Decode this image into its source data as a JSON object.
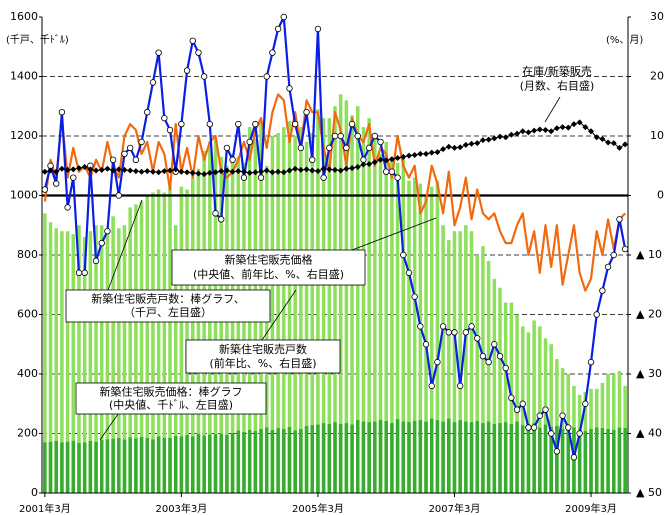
{
  "chart_data": {
    "type": "combo",
    "unit_left": "(千戸、千ﾄﾞﾙ)",
    "unit_right": "(%、月)",
    "categories": [
      "2001年3月",
      null,
      null,
      null,
      null,
      null,
      null,
      null,
      null,
      null,
      null,
      null,
      null,
      null,
      null,
      null,
      null,
      null,
      null,
      null,
      null,
      null,
      null,
      null,
      "2003年3月",
      null,
      null,
      null,
      null,
      null,
      null,
      null,
      null,
      null,
      null,
      null,
      null,
      null,
      null,
      null,
      null,
      null,
      null,
      null,
      null,
      null,
      null,
      null,
      "2005年3月",
      null,
      null,
      null,
      null,
      null,
      null,
      null,
      null,
      null,
      null,
      null,
      null,
      null,
      null,
      null,
      null,
      null,
      null,
      null,
      null,
      null,
      null,
      null,
      "2007年3月",
      null,
      null,
      null,
      null,
      null,
      null,
      null,
      null,
      null,
      null,
      null,
      null,
      null,
      null,
      null,
      null,
      null,
      null,
      null,
      null,
      null,
      null,
      null,
      "2009年3月",
      null,
      null,
      null,
      null,
      null,
      null
    ],
    "ylim": [
      0,
      1600
    ],
    "yticks": [
      0,
      200,
      400,
      600,
      800,
      1000,
      1200,
      1400,
      1600
    ],
    "y2lim": [
      -50,
      30
    ],
    "y2ticks": [
      30,
      20,
      10,
      0,
      {
        "value": -10,
        "label": "▲ 10"
      },
      {
        "value": -20,
        "label": "▲ 20"
      },
      {
        "value": -30,
        "label": "▲ 30"
      },
      {
        "value": -40,
        "label": "▲ 40"
      },
      {
        "value": -50,
        "label": "▲ 50"
      }
    ],
    "grid": true,
    "series": [
      {
        "name": "新築住宅販売戸数：棒グラフ、",
        "note": "（千戸、左目盛）",
        "kind": "bar",
        "color": "#8ee05c",
        "values": [
          940,
          910,
          890,
          880,
          880,
          870,
          900,
          860,
          880,
          900,
          900,
          880,
          930,
          890,
          900,
          960,
          970,
          980,
          1000,
          1010,
          1020,
          1010,
          1030,
          900,
          1030,
          1020,
          1060,
          1090,
          1150,
          1180,
          1190,
          1130,
          1100,
          1140,
          1130,
          1110,
          1230,
          1190,
          1250,
          1100,
          1200,
          1210,
          1230,
          1250,
          1200,
          1230,
          1180,
          1210,
          1290,
          1260,
          1260,
          1300,
          1340,
          1320,
          1270,
          1300,
          1230,
          1260,
          1200,
          1140,
          1180,
          1130,
          1110,
          1130,
          1050,
          1060,
          1040,
          1000,
          1030,
          1050,
          900,
          850,
          880,
          880,
          900,
          880,
          800,
          830,
          780,
          720,
          690,
          640,
          640,
          600,
          560,
          540,
          580,
          560,
          520,
          500,
          450,
          420,
          400,
          360,
          330,
          340,
          350,
          350,
          370,
          400,
          400,
          410,
          360
        ]
      },
      {
        "name": "新築住宅販売価格：棒グラフ",
        "note": "(中央値、千ﾄﾞﾙ、左目盛)",
        "kind": "bar",
        "color": "#36ad2e",
        "values": [
          170,
          172,
          175,
          170,
          172,
          175,
          168,
          170,
          175,
          172,
          178,
          180,
          182,
          185,
          180,
          187,
          183,
          188,
          185,
          180,
          190,
          185,
          185,
          192,
          190,
          195,
          190,
          198,
          193,
          196,
          198,
          200,
          195,
          202,
          210,
          205,
          212,
          208,
          215,
          220,
          212,
          218,
          215,
          222,
          210,
          215,
          225,
          228,
          230,
          235,
          232,
          238,
          232,
          235,
          230,
          245,
          240,
          238,
          240,
          245,
          242,
          235,
          248,
          240,
          238,
          242,
          245,
          240,
          250,
          245,
          240,
          250,
          238,
          245,
          240,
          238,
          242,
          235,
          240,
          232,
          235,
          238,
          232,
          240,
          228,
          232,
          235,
          220,
          230,
          222,
          225,
          215,
          222,
          220,
          210,
          208,
          215,
          220,
          218,
          215,
          212,
          220,
          218
        ]
      },
      {
        "name": "新築住宅販売価格",
        "note": "(中央値、前年比、%、右目盛)",
        "kind": "line",
        "axis": "y2",
        "color": "#f26a10",
        "values": [
          -1,
          6,
          3,
          13,
          3,
          8,
          4,
          5,
          3,
          6,
          4,
          9,
          5,
          3,
          10,
          12,
          11,
          7,
          9,
          4,
          9,
          7,
          1,
          12,
          4,
          8,
          3,
          10,
          6,
          9,
          10,
          4,
          3,
          4,
          6,
          9,
          6,
          11,
          13,
          8,
          14,
          17,
          16,
          9,
          14,
          8,
          16,
          14,
          14,
          8,
          4,
          14,
          11,
          5,
          13,
          10,
          9,
          12,
          5,
          8,
          7,
          3,
          10,
          5,
          3,
          5,
          -3,
          -1,
          5,
          2,
          -3,
          4,
          -5,
          -2,
          3,
          -4,
          1,
          -3,
          -4,
          -3,
          -6,
          -8,
          -8,
          -5,
          -3,
          -10,
          -6,
          -13,
          -5,
          -12,
          -5,
          -15,
          -10,
          -5,
          -13,
          -16,
          -14,
          -6,
          -10,
          -4,
          -9,
          -4,
          -3
        ]
      },
      {
        "name": "新築住宅販売戸数",
        "note": "(前年比、%、右目盛)",
        "kind": "line",
        "axis": "y2",
        "color": "#0a1ee6",
        "marker": "circle",
        "values": [
          1,
          5,
          2,
          14,
          -2,
          3,
          -13,
          -13,
          5,
          -11,
          -8,
          -6,
          6,
          0,
          7,
          8,
          6,
          9,
          14,
          19,
          24,
          13,
          11,
          4,
          12,
          21,
          26,
          24,
          20,
          12,
          -3,
          -4,
          8,
          6,
          12,
          3,
          9,
          12,
          3,
          20,
          24,
          28,
          30,
          18,
          12,
          8,
          14,
          6,
          28,
          3,
          8,
          10,
          10,
          8,
          12,
          10,
          6,
          8,
          10,
          9,
          4,
          4,
          3,
          -10,
          -13,
          -17,
          -22,
          -25,
          -32,
          -28,
          -22,
          -23,
          -23,
          -32,
          -23,
          -22,
          -24,
          -27,
          -28,
          -25,
          -27,
          -29,
          -34,
          -36,
          -35,
          -39,
          -39,
          -37,
          -36,
          -40,
          -43,
          -37,
          -39,
          -44,
          -40,
          -35,
          -28,
          -20,
          -16,
          -12,
          -10,
          -4,
          -9
        ]
      },
      {
        "name": "在庫/新築販売",
        "note": "(月数、右目盛)",
        "kind": "line",
        "axis": "y2",
        "color": "#000000",
        "marker": "diamond",
        "values": [
          4,
          4.2,
          4,
          4.5,
          4.3,
          4.4,
          4.6,
          4.8,
          4.4,
          4.2,
          4.3,
          4.5,
          4.2,
          4.4,
          4.3,
          4.2,
          4.1,
          4,
          4.1,
          4,
          3.9,
          4.1,
          4.2,
          4.4,
          4,
          3.9,
          3.8,
          3.7,
          3.6,
          3.8,
          3.9,
          4.1,
          4.2,
          4,
          4.1,
          4,
          3.8,
          3.9,
          4,
          4.2,
          3.9,
          4,
          3.9,
          4.2,
          4.5,
          4.3,
          4.4,
          4.2,
          4.1,
          4.5,
          4.4,
          4.3,
          4.2,
          4.5,
          4.6,
          4.8,
          5.2,
          5.3,
          5.6,
          6,
          5.9,
          6.1,
          6.3,
          6.5,
          6.7,
          6.8,
          7,
          7,
          7.2,
          7.3,
          7.8,
          8.2,
          8,
          8.1,
          8.5,
          8.7,
          8.8,
          9.3,
          9.4,
          9.6,
          9.9,
          9.8,
          10.2,
          10.4,
          10.8,
          10.6,
          10.9,
          11.1,
          11,
          10.8,
          11.3,
          11.5,
          11.4,
          12,
          12.3,
          11.5,
          10.8,
          9.8,
          9.5,
          8.9,
          8.8,
          8,
          8.6
        ]
      }
    ]
  }
}
